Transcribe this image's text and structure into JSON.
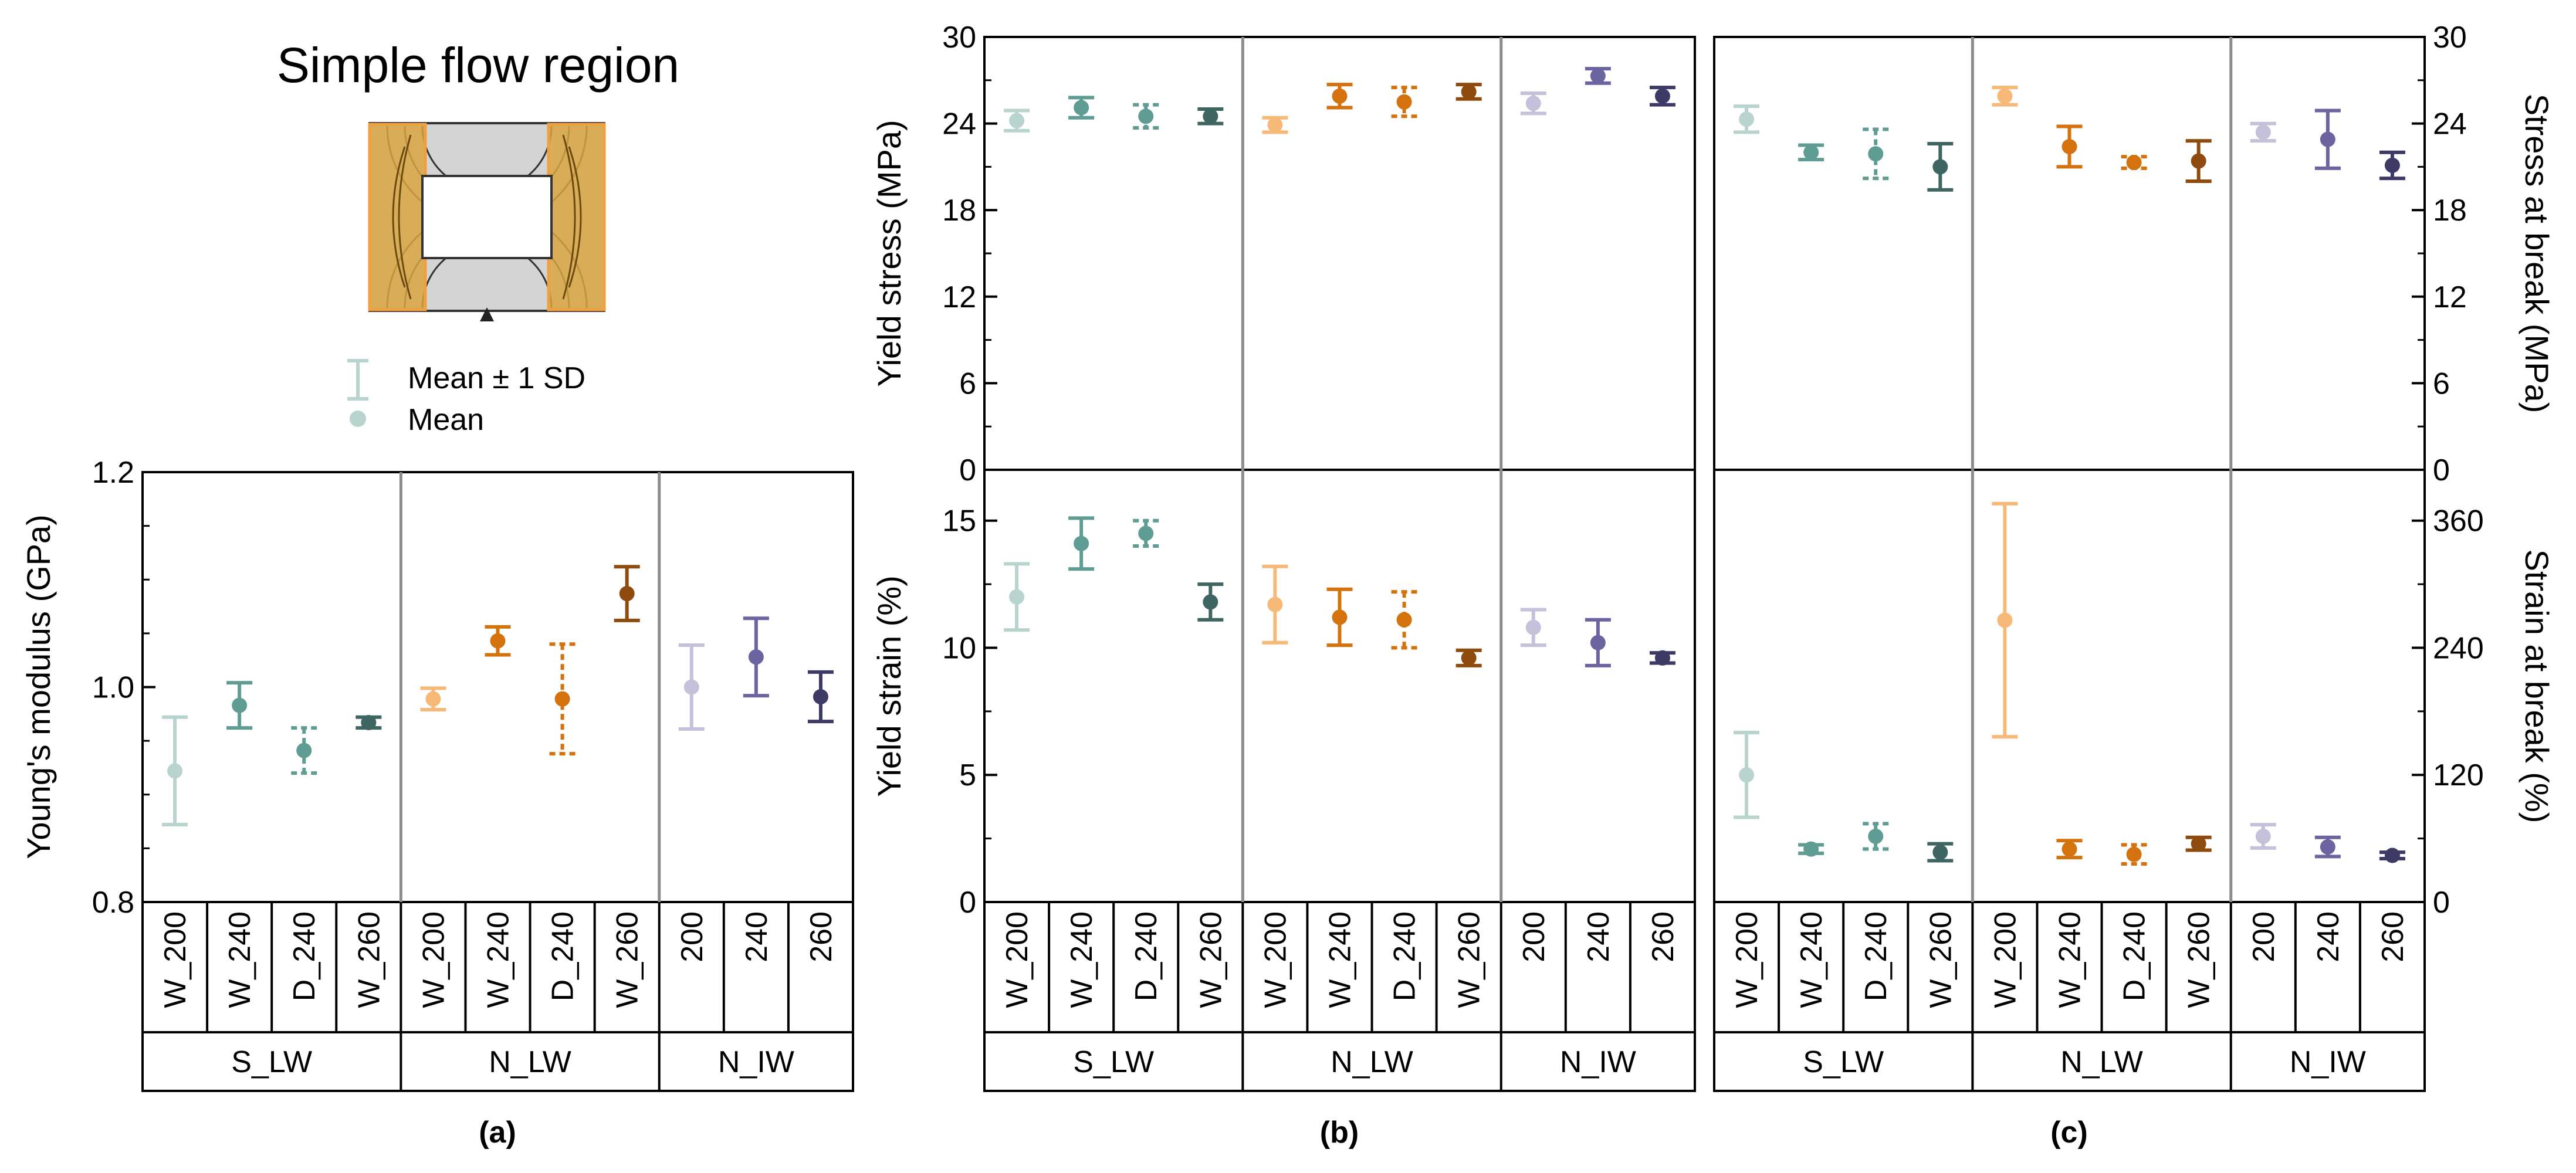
{
  "figure": {
    "header_title": "Simple flow region",
    "legend": {
      "sd_label": "Mean ± 1 SD",
      "mean_label": "Mean"
    },
    "panel_labels": [
      "(a)",
      "(b)",
      "(c)"
    ]
  },
  "colors": {
    "S_W_200": "#b9d4cf",
    "S_W_240": "#5f9c94",
    "S_D_240": "#5f9c94",
    "S_W_260": "#3e6561",
    "N_W_200": "#f6b978",
    "N_W_240": "#d4720e",
    "N_D_240": "#d4720e",
    "N_W_260": "#8f4b0d",
    "I_200": "#c6c1db",
    "I_240": "#6b64a0",
    "I_260": "#3e3a66",
    "divider": "#8c8c8c",
    "legend_marker": "#b9d4cf",
    "region_fill": "#d9a441",
    "region_edge": "#f0a040"
  },
  "axis_labels": {
    "young": "Young's modulus (GPa)",
    "yield_stress": "Yield stress (MPa)",
    "stress_break": "Stress at break (MPa)",
    "yield_strain": "Yield strain (%)",
    "strain_break": "Strain at break (%)"
  },
  "tick_labels": {
    "young": [
      "0.8",
      "1.0",
      "1.2"
    ],
    "stress": [
      "0",
      "6",
      "12",
      "18",
      "24",
      "30"
    ],
    "yield_strain": [
      "0",
      "5",
      "10",
      "15"
    ],
    "strain_break": [
      "0",
      "120",
      "240",
      "360"
    ]
  },
  "category_labels": [
    "W_200",
    "W_240",
    "D_240",
    "W_260",
    "W_200",
    "W_240",
    "D_240",
    "W_260",
    "200",
    "240",
    "260"
  ],
  "group_labels": [
    "S_LW",
    "N_LW",
    "N_IW"
  ],
  "chart_data": [
    {
      "id": "a",
      "type": "scatter",
      "subtype": "errorbar",
      "ylabel": "Young's modulus (GPa)",
      "ylim": [
        0.8,
        1.2
      ],
      "grid": false,
      "categories": [
        "W_200",
        "W_240",
        "D_240",
        "W_260",
        "W_200",
        "W_240",
        "D_240",
        "W_260",
        "200",
        "240",
        "260"
      ],
      "groups": [
        "S_LW",
        "N_LW",
        "N_IW"
      ],
      "mean": [
        0.922,
        0.983,
        0.941,
        0.967,
        0.989,
        1.043,
        0.989,
        1.087,
        1.0,
        1.028,
        0.991
      ],
      "sd": [
        0.05,
        0.021,
        0.021,
        0.005,
        0.01,
        0.013,
        0.051,
        0.025,
        0.039,
        0.036,
        0.023
      ]
    },
    {
      "id": "b-top",
      "type": "scatter",
      "subtype": "errorbar",
      "ylabel": "Yield stress (MPa)",
      "ylim": [
        0,
        30
      ],
      "grid": false,
      "categories": [
        "W_200",
        "W_240",
        "D_240",
        "W_260",
        "W_200",
        "W_240",
        "D_240",
        "W_260",
        "200",
        "240",
        "260"
      ],
      "groups": [
        "S_LW",
        "N_LW",
        "N_IW"
      ],
      "mean": [
        24.2,
        25.1,
        24.5,
        24.5,
        23.9,
        25.9,
        25.5,
        26.2,
        25.4,
        27.3,
        25.9
      ],
      "sd": [
        0.7,
        0.7,
        0.8,
        0.5,
        0.5,
        0.8,
        1.0,
        0.5,
        0.7,
        0.5,
        0.6
      ]
    },
    {
      "id": "b-bottom",
      "type": "scatter",
      "subtype": "errorbar",
      "ylabel": "Yield strain (%)",
      "ylim": [
        0,
        17
      ],
      "grid": false,
      "categories": [
        "W_200",
        "W_240",
        "D_240",
        "W_260",
        "W_200",
        "W_240",
        "D_240",
        "W_260",
        "200",
        "240",
        "260"
      ],
      "groups": [
        "S_LW",
        "N_LW",
        "N_IW"
      ],
      "mean": [
        12.0,
        14.1,
        14.5,
        11.8,
        11.7,
        11.2,
        11.1,
        9.6,
        10.8,
        10.2,
        9.6
      ],
      "sd": [
        1.3,
        1.0,
        0.5,
        0.7,
        1.5,
        1.1,
        1.1,
        0.3,
        0.7,
        0.9,
        0.2
      ]
    },
    {
      "id": "c-top",
      "type": "scatter",
      "subtype": "errorbar",
      "ylabel": "Stress at break (MPa)",
      "ylim": [
        0,
        30
      ],
      "grid": false,
      "categories": [
        "W_200",
        "W_240",
        "D_240",
        "W_260",
        "W_200",
        "W_240",
        "D_240",
        "W_260",
        "200",
        "240",
        "260"
      ],
      "groups": [
        "S_LW",
        "N_LW",
        "N_IW"
      ],
      "mean": [
        24.3,
        22.0,
        21.9,
        21.0,
        25.9,
        22.4,
        21.3,
        21.4,
        23.4,
        22.9,
        21.1
      ],
      "sd": [
        0.9,
        0.5,
        1.7,
        1.6,
        0.6,
        1.4,
        0.4,
        1.4,
        0.6,
        2.0,
        0.9
      ]
    },
    {
      "id": "c-bottom",
      "type": "scatter",
      "subtype": "errorbar",
      "ylabel": "Strain at break (%)",
      "ylim": [
        0,
        408
      ],
      "grid": false,
      "categories": [
        "W_200",
        "W_240",
        "D_240",
        "W_260",
        "W_200",
        "W_240",
        "D_240",
        "W_260",
        "200",
        "240",
        "260"
      ],
      "groups": [
        "S_LW",
        "N_LW",
        "N_IW"
      ],
      "mean": [
        120,
        50,
        62,
        47,
        266,
        50,
        45,
        55,
        62,
        52,
        44
      ],
      "sd": [
        40,
        4,
        12,
        8,
        110,
        8,
        9,
        6,
        11,
        9,
        3
      ]
    }
  ]
}
